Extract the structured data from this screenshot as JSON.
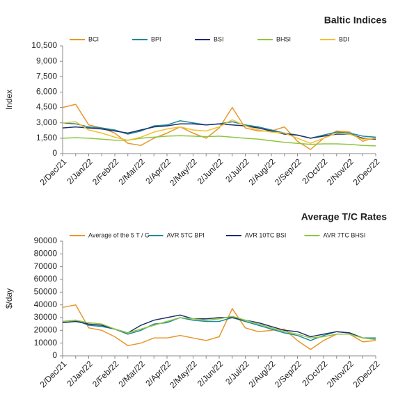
{
  "chart_data": [
    {
      "type": "line",
      "title": "Baltic Indices",
      "ylabel": "Index",
      "categories": [
        "2/Dec/21",
        null,
        "2/Jan/22",
        null,
        "2/Feb/22",
        null,
        "2/Mar/22",
        null,
        "2/Apr/22",
        null,
        "2/May/22",
        null,
        "2/Jun/22",
        null,
        "2/Jul/22",
        null,
        "2/Aug/22",
        null,
        "2/Sep/22",
        null,
        "2/Oct/22",
        null,
        "2/Nov/22",
        null,
        "2/Dec/22"
      ],
      "ylim": [
        0,
        10500
      ],
      "yticks": [
        0,
        {
          "value": 1500,
          "label": "1,500"
        },
        {
          "value": 3000,
          "label": "3,000"
        },
        {
          "value": 4500,
          "label": "4,500"
        },
        {
          "value": 6000,
          "label": "6,000"
        },
        {
          "value": 7500,
          "label": "7,500"
        },
        {
          "value": 9000,
          "label": "9,000"
        },
        {
          "value": 10500,
          "label": "10,500"
        }
      ],
      "series": [
        {
          "name": "BCI",
          "color": "#e8962c",
          "values": [
            4500,
            4800,
            2800,
            2500,
            2000,
            1000,
            800,
            1500,
            2000,
            2600,
            2000,
            1500,
            2500,
            4500,
            2500,
            2200,
            2200,
            2600,
            1200,
            400,
            1500,
            2200,
            2100,
            1200,
            1600
          ]
        },
        {
          "name": "BPI",
          "color": "#1f8a99",
          "values": [
            3000,
            2900,
            2600,
            2500,
            2300,
            1900,
            2200,
            2700,
            2800,
            3200,
            3000,
            2800,
            2900,
            3100,
            2800,
            2600,
            2300,
            2000,
            1800,
            1500,
            1800,
            2100,
            2000,
            1700,
            1600
          ]
        },
        {
          "name": "BSI",
          "color": "#1f2f6b",
          "values": [
            2500,
            2600,
            2500,
            2400,
            2200,
            2000,
            2300,
            2600,
            2700,
            2900,
            2900,
            2800,
            2900,
            2800,
            2700,
            2500,
            2200,
            1900,
            1800,
            1500,
            1700,
            1900,
            1900,
            1500,
            1400
          ]
        },
        {
          "name": "BHSI",
          "color": "#8dc63f",
          "values": [
            1500,
            1550,
            1500,
            1400,
            1300,
            1300,
            1500,
            1600,
            1700,
            1750,
            1700,
            1650,
            1700,
            1600,
            1500,
            1400,
            1250,
            1100,
            1000,
            900,
            950,
            950,
            900,
            800,
            750
          ]
        },
        {
          "name": "BDI",
          "color": "#f2c12e",
          "values": [
            3000,
            3100,
            2300,
            2000,
            1600,
            1300,
            1600,
            2100,
            2400,
            2600,
            2300,
            2200,
            2600,
            3300,
            2700,
            2300,
            2100,
            2000,
            1500,
            1000,
            1500,
            2000,
            1900,
            1400,
            1500
          ]
        }
      ]
    },
    {
      "type": "line",
      "title": "Average T/C Rates",
      "ylabel": "$/day",
      "categories": [
        "2/Dec/21",
        null,
        "2/Jan/22",
        null,
        "2/Feb/22",
        null,
        "2/Mar/22",
        null,
        "2/Apr/22",
        null,
        "2/May/22",
        null,
        "2/Jun/22",
        null,
        "2/Jul/22",
        null,
        "2/Aug/22",
        null,
        "2/Sep/22",
        null,
        "2/Oct/22",
        null,
        "2/Nov/22",
        null,
        "2/Dec/22"
      ],
      "ylim": [
        0,
        90000
      ],
      "yticks": [
        0,
        10000,
        20000,
        30000,
        40000,
        50000,
        60000,
        70000,
        80000,
        90000
      ],
      "series": [
        {
          "name": "Average of the 5 T / C",
          "color": "#e8962c",
          "values": [
            38000,
            40000,
            22000,
            20000,
            15000,
            8000,
            10000,
            14000,
            14000,
            16000,
            14000,
            12000,
            15000,
            37000,
            22000,
            19000,
            20000,
            21000,
            12000,
            5000,
            12000,
            17000,
            17000,
            11000,
            12000
          ]
        },
        {
          "name": "AVR 5TC BPI",
          "color": "#1f8a99",
          "values": [
            27000,
            28000,
            24000,
            23000,
            21000,
            17000,
            20000,
            25000,
            26000,
            30000,
            28000,
            27000,
            27000,
            30000,
            27000,
            24000,
            21000,
            18000,
            16000,
            12000,
            16000,
            19000,
            18000,
            14000,
            14000
          ]
        },
        {
          "name": "AVR 10TC BSI",
          "color": "#1f2f6b",
          "values": [
            26000,
            27000,
            25000,
            24000,
            21000,
            18000,
            24000,
            28000,
            30000,
            32000,
            29000,
            29000,
            30000,
            30000,
            28000,
            26000,
            23000,
            20000,
            19000,
            15000,
            17000,
            19000,
            18000,
            14000,
            13000
          ]
        },
        {
          "name": "AVR 7TC BHSI",
          "color": "#8dc63f",
          "values": [
            27000,
            28000,
            26000,
            25000,
            21000,
            18000,
            21000,
            24000,
            27000,
            30000,
            29000,
            28000,
            29000,
            31000,
            28000,
            25000,
            22000,
            19000,
            17000,
            14000,
            15000,
            17000,
            17000,
            14000,
            13000
          ]
        }
      ]
    }
  ]
}
